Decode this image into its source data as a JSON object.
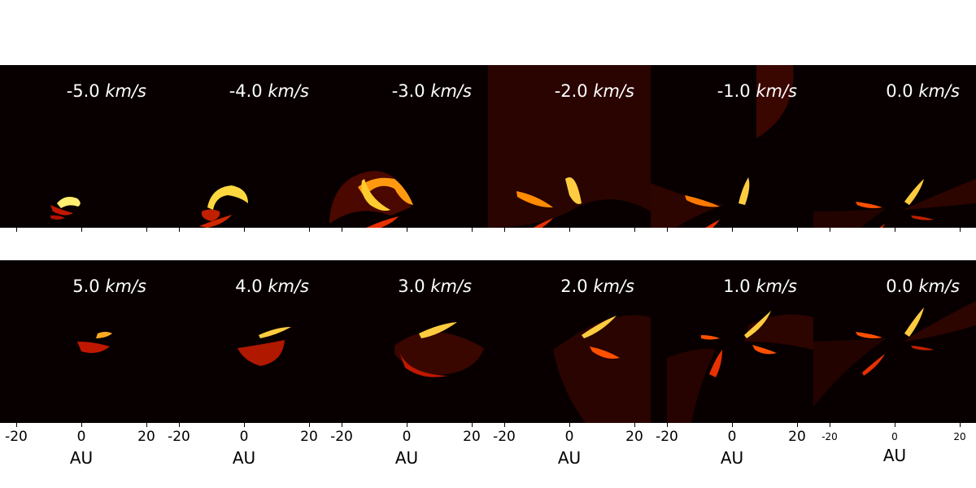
{
  "chart_data": {
    "type": "heatmap",
    "colormap": "afmhot",
    "xlabel": "AU",
    "xlim": [
      -25,
      25
    ],
    "x_ticks": [
      -20,
      0,
      20
    ],
    "x_tick_labels": [
      "-20",
      "0",
      "20"
    ],
    "velocity_unit": "km/s",
    "rows": [
      {
        "row": "top",
        "panels": [
          {
            "velocity": "-5.0",
            "unit": "km/s"
          },
          {
            "velocity": "-4.0",
            "unit": "km/s"
          },
          {
            "velocity": "-3.0",
            "unit": "km/s"
          },
          {
            "velocity": "-2.0",
            "unit": "km/s"
          },
          {
            "velocity": "-1.0",
            "unit": "km/s"
          },
          {
            "velocity": "0.0",
            "unit": "km/s"
          }
        ]
      },
      {
        "row": "bottom",
        "panels": [
          {
            "velocity": "5.0",
            "unit": "km/s"
          },
          {
            "velocity": "4.0",
            "unit": "km/s"
          },
          {
            "velocity": "3.0",
            "unit": "km/s"
          },
          {
            "velocity": "2.0",
            "unit": "km/s"
          },
          {
            "velocity": "1.0",
            "unit": "km/s"
          },
          {
            "velocity": "0.0",
            "unit": "km/s"
          }
        ]
      }
    ]
  },
  "colors": {
    "background": "#080000",
    "dim": "#3a0500",
    "mid": "#d02000",
    "bright": "#ff8c00",
    "peak": "#ffff90"
  }
}
